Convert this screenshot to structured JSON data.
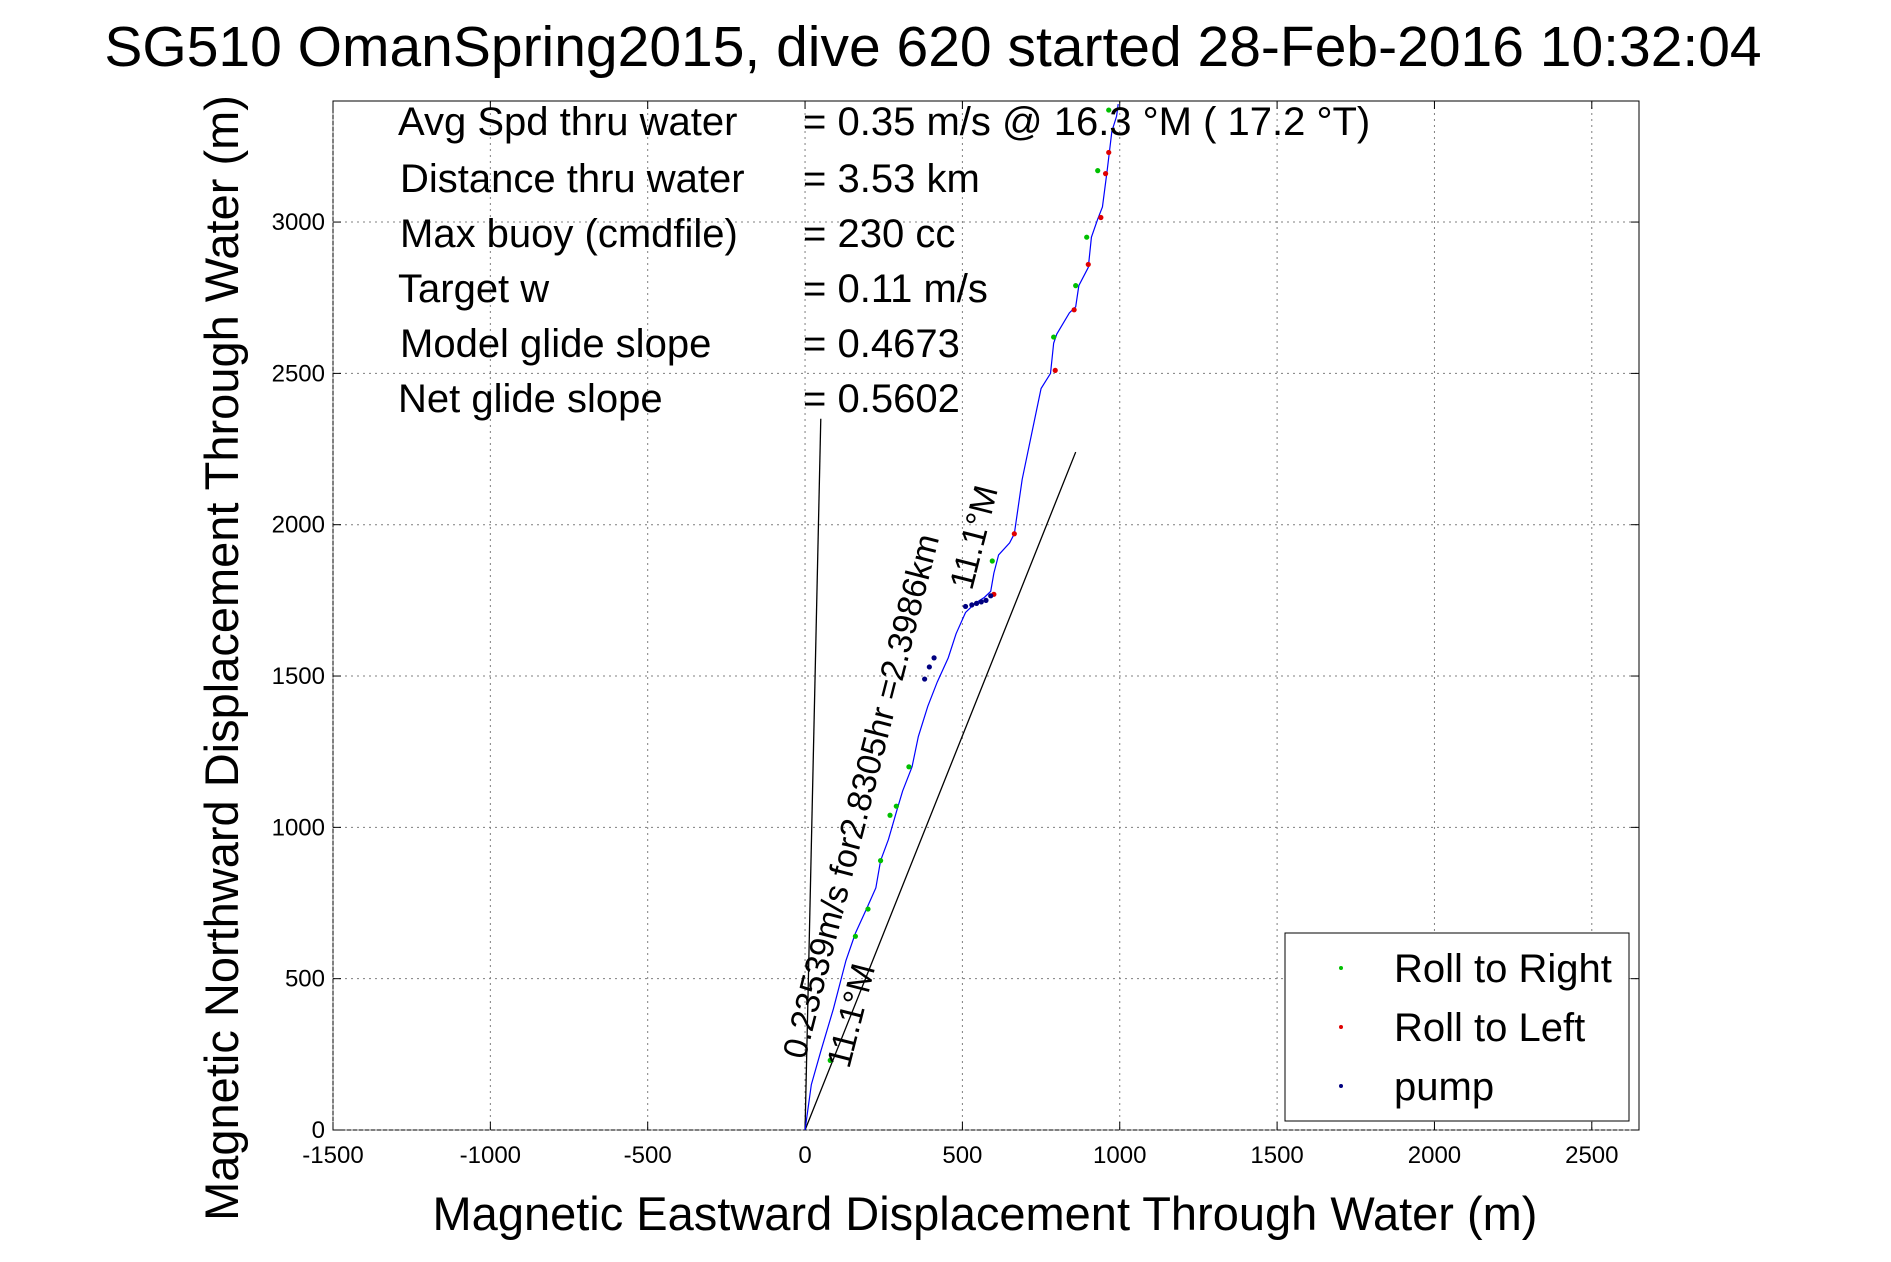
{
  "title": "SG510 OmanSpring2015, dive 620 started 28-Feb-2016 10:32:04",
  "stats": [
    {
      "label": "Avg Spd thru water",
      "value": "=  0.35 m/s @  16.3 °M ( 17.2 °T)"
    },
    {
      "label": "Distance thru water",
      "value": "=  3.53 km"
    },
    {
      "label": "Max buoy (cmdfile)",
      "value": "= 230 cc"
    },
    {
      "label": "Target w",
      "value": "= 0.11 m/s"
    },
    {
      "label": "Model glide slope",
      "value": "= 0.4673"
    },
    {
      "label": "Net glide slope",
      "value": "= 0.5602"
    }
  ],
  "chart_data": {
    "type": "line",
    "title": "SG510 OmanSpring2015, dive 620 started 28-Feb-2016 10:32:04",
    "xlabel": "Magnetic Eastward Displacement Through Water (m)",
    "ylabel": "Magnetic Northward Displacement Through Water (m)",
    "xlim": [
      -1500,
      2650
    ],
    "ylim": [
      0,
      3400
    ],
    "xticks": [
      "-1500",
      "-1000",
      "-500",
      "0",
      "500",
      "1000",
      "1500",
      "2000",
      "2500"
    ],
    "yticks": [
      "0",
      "500",
      "1000",
      "1500",
      "2000",
      "2500",
      "3000"
    ],
    "grid": true,
    "legend_position": "bottom-right",
    "legend": [
      {
        "label": "Roll to Right",
        "color": "#00c000"
      },
      {
        "label": "Roll to Left",
        "color": "#e00000"
      },
      {
        "label": "pump",
        "color": "#000080"
      }
    ],
    "track": {
      "color": "#0000ff",
      "x": [
        0,
        20,
        50,
        90,
        130,
        160,
        195,
        225,
        240,
        265,
        290,
        310,
        340,
        360,
        390,
        420,
        455,
        480,
        510,
        540,
        570,
        590,
        600,
        615,
        650,
        665,
        690,
        720,
        750,
        780,
        790,
        800,
        840,
        860,
        870,
        900,
        910,
        930,
        945,
        960,
        975,
        990,
        995
      ],
      "y": [
        0,
        150,
        260,
        400,
        560,
        650,
        730,
        800,
        890,
        960,
        1050,
        1120,
        1200,
        1300,
        1400,
        1480,
        1560,
        1640,
        1710,
        1740,
        1760,
        1780,
        1840,
        1900,
        1940,
        1970,
        2150,
        2300,
        2450,
        2500,
        2600,
        2630,
        2700,
        2720,
        2790,
        2850,
        2950,
        3010,
        3050,
        3170,
        3300,
        3350,
        3390
      ]
    },
    "roll_right": {
      "color": "#00c000",
      "x": [
        80,
        160,
        200,
        240,
        270,
        290,
        330,
        595,
        790,
        860,
        895,
        930,
        965
      ],
      "y": [
        230,
        640,
        730,
        890,
        1040,
        1070,
        1200,
        1880,
        2620,
        2790,
        2950,
        3170,
        3370
      ]
    },
    "roll_left": {
      "color": "#e00000",
      "x": [
        600,
        665,
        795,
        855,
        900,
        940,
        955,
        965
      ],
      "y": [
        1770,
        1970,
        2510,
        2710,
        2860,
        3015,
        3160,
        3230
      ]
    },
    "pump": {
      "color": "#000080",
      "x": [
        410,
        395,
        380,
        510,
        530,
        545,
        560,
        575,
        590
      ],
      "y": [
        1560,
        1530,
        1490,
        1730,
        1735,
        1740,
        1745,
        1750,
        1765
      ]
    },
    "reference_lines": [
      {
        "name": "current",
        "x": [
          0,
          50
        ],
        "y": [
          0,
          2350
        ]
      },
      {
        "name": "heading",
        "x": [
          0,
          860
        ],
        "y": [
          0,
          2240
        ]
      }
    ],
    "annotations": [
      {
        "text": "0.23539m/s for2.8305hr =2.3986km",
        "x": 0,
        "y": 230,
        "angle": -75.6
      },
      {
        "text": "11.1°M",
        "x": 140,
        "y": 200,
        "angle": -75.6
      },
      {
        "text": "11.1°M",
        "x": 530,
        "y": 1780,
        "angle": -75.6
      }
    ]
  }
}
